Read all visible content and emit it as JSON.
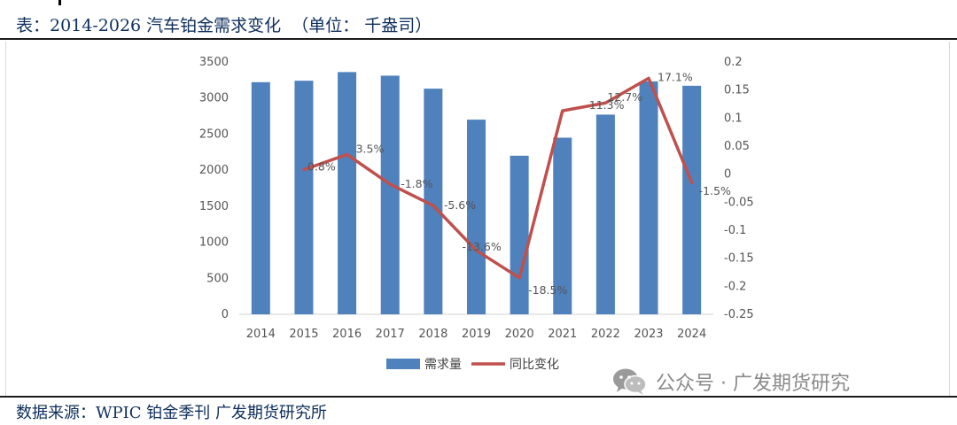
{
  "header": {
    "title": "表：2014-2026 汽车铂金需求变化  （单位： 千盎司）"
  },
  "footer": {
    "source": "数据来源：WPIC 铂金季刊 广发期货研究所"
  },
  "watermark": {
    "text": "公众号 · 广发期货研究",
    "icon": "wechat-icon"
  },
  "colors": {
    "bar": "#4f81bd",
    "line": "#c0504d"
  },
  "chart_data": {
    "type": "bar",
    "title": "",
    "categories": [
      "2014",
      "2015",
      "2016",
      "2017",
      "2018",
      "2019",
      "2020",
      "2021",
      "2022",
      "2023",
      "2024"
    ],
    "series": [
      {
        "name": "需求量",
        "type": "bar",
        "axis": "left",
        "values": [
          3220,
          3240,
          3360,
          3310,
          3130,
          2700,
          2200,
          2450,
          2770,
          3230,
          3170
        ]
      },
      {
        "name": "同比变化",
        "type": "line",
        "axis": "right",
        "values": [
          null,
          0.008,
          0.035,
          -0.018,
          -0.056,
          -0.136,
          -0.185,
          0.113,
          0.127,
          0.171,
          -0.015
        ],
        "labels": [
          null,
          "0.8%",
          "3.5%",
          "-1.8%",
          "-5.6%",
          "-13.6%",
          "-18.5%",
          "11.3%",
          "12.7%",
          "17.1%",
          "-1.5%"
        ]
      }
    ],
    "y_left": {
      "min": 0,
      "max": 3500,
      "ticks": [
        "0",
        "500",
        "1000",
        "1500",
        "2000",
        "2500",
        "3000",
        "3500"
      ]
    },
    "y_right": {
      "min": -0.25,
      "max": 0.2,
      "ticks": [
        "-0.25",
        "-0.2",
        "-0.15",
        "-0.1",
        "-0.05",
        "0",
        "0.05",
        "0.1",
        "0.15",
        "0.2"
      ]
    },
    "legend": [
      "需求量",
      "同比变化"
    ],
    "legend_position": "bottom",
    "grid": false
  }
}
